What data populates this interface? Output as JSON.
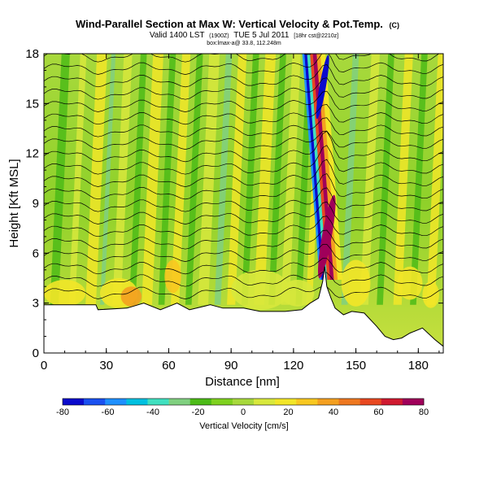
{
  "chart_data": {
    "type": "heatmap",
    "title": "Wind-Parallel Section at Max W: Vertical Velocity & Pot.Temp.",
    "title_mark": "(C)",
    "subtitle": "Valid 1400 LST",
    "subtitle_utc": "(1900Z)",
    "subtitle_date": "TUE 5 Jul 2011",
    "subtitle_run": "[18hr cst@2210z]",
    "subtitle2": "box:lmax-a@ 33.8, 112.248m",
    "xlabel": "Distance [nm]",
    "ylabel": "Height [Kft MSL]",
    "xlim": [
      0,
      192
    ],
    "ylim": [
      0,
      18
    ],
    "xticks": [
      0,
      30,
      60,
      90,
      120,
      150,
      180
    ],
    "xtick_labels": [
      "0",
      "30",
      "60",
      "90",
      "120",
      "150",
      "180"
    ],
    "yticks": [
      0,
      3,
      6,
      9,
      12,
      15,
      18
    ],
    "ytick_labels": [
      "0",
      "3",
      "6",
      "9",
      "12",
      "15",
      "18"
    ],
    "field": "vertical velocity (shaded) with potential temperature contours",
    "terrain_profile": [
      [
        0,
        2.9
      ],
      [
        25,
        2.9
      ],
      [
        26,
        2.6
      ],
      [
        40,
        2.7
      ],
      [
        48,
        3.0
      ],
      [
        56,
        2.6
      ],
      [
        64,
        3.0
      ],
      [
        70,
        2.6
      ],
      [
        80,
        2.9
      ],
      [
        86,
        2.7
      ],
      [
        96,
        2.7
      ],
      [
        104,
        2.5
      ],
      [
        116,
        2.5
      ],
      [
        124,
        2.6
      ],
      [
        128,
        3.0
      ],
      [
        132,
        3.3
      ],
      [
        134,
        4.3
      ],
      [
        135,
        5.2
      ],
      [
        136,
        4.0
      ],
      [
        138,
        3.3
      ],
      [
        140,
        2.7
      ],
      [
        144,
        2.3
      ],
      [
        148,
        2.5
      ],
      [
        154,
        2.4
      ],
      [
        160,
        1.6
      ],
      [
        164,
        1.0
      ],
      [
        168,
        0.8
      ],
      [
        172,
        0.9
      ],
      [
        176,
        1.2
      ],
      [
        182,
        1.5
      ],
      [
        188,
        0.8
      ],
      [
        192,
        0.4
      ]
    ],
    "updraft_max": {
      "x": 136,
      "z": 7,
      "w": 80
    },
    "downdraft_max": {
      "x": 134,
      "z": 16,
      "w": -80
    },
    "colorbar": {
      "label": "Vertical Velocity [cm/s]",
      "levels": [
        -80,
        -70,
        -60,
        -50,
        -40,
        -30,
        -20,
        -10,
        0,
        10,
        20,
        30,
        40,
        50,
        60,
        70,
        80
      ],
      "tick_labels": [
        "-80",
        "-60",
        "-40",
        "-20",
        "0",
        "20",
        "40",
        "60",
        "80"
      ],
      "colors": [
        "#0a0acc",
        "#1a50f0",
        "#1e90ff",
        "#00c0e0",
        "#40e0c0",
        "#80d080",
        "#4cbb17",
        "#7fd11f",
        "#a8d93c",
        "#d8e83c",
        "#f2e628",
        "#f8c820",
        "#f4a020",
        "#ee7820",
        "#e84820",
        "#d01a30",
        "#a0005a"
      ]
    }
  }
}
